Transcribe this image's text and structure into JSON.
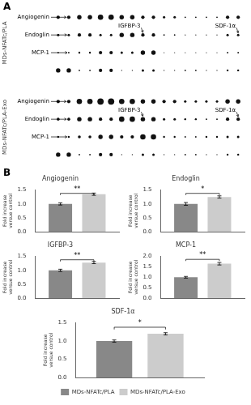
{
  "chart_data": [
    {
      "type": "bubble",
      "panel_label": "A",
      "ylabel": "MDs-NFATc/PLA",
      "color": "#111111",
      "cells": [
        [
          7,
          7,
          9,
          9,
          11,
          11,
          9,
          9,
          7,
          7,
          5,
          5,
          3,
          3,
          3,
          3,
          7,
          7
        ],
        [
          5,
          5,
          7,
          7,
          5,
          5,
          9,
          9,
          7,
          7,
          3,
          3,
          2,
          2,
          2,
          2,
          5,
          5
        ],
        [
          3,
          3,
          4,
          4,
          7,
          7,
          5,
          5,
          9,
          9,
          2,
          2,
          2,
          2,
          2,
          2,
          3,
          3
        ],
        [
          9,
          9,
          3,
          3,
          7,
          7,
          2,
          2,
          5,
          5,
          2,
          2,
          3,
          3,
          2,
          2,
          4,
          4
        ]
      ],
      "annotations": [
        "Angiogenin",
        "Endoglin",
        "MCP-1",
        "IGFBP-3",
        "SDF-1α"
      ],
      "tick_labels": false,
      "grid": false
    },
    {
      "type": "bubble",
      "ylabel": "MDs-NFATc/PLA-Exo",
      "color": "#111111",
      "cells": [
        [
          7,
          7,
          11,
          11,
          13,
          13,
          11,
          11,
          9,
          9,
          7,
          7,
          5,
          5,
          5,
          5,
          9,
          9
        ],
        [
          6,
          6,
          9,
          9,
          7,
          7,
          11,
          11,
          9,
          9,
          5,
          5,
          4,
          4,
          3,
          3,
          7,
          7
        ],
        [
          4,
          4,
          6,
          6,
          9,
          9,
          7,
          7,
          11,
          11,
          4,
          4,
          3,
          3,
          4,
          4,
          5,
          5
        ],
        [
          9,
          9,
          3,
          3,
          7,
          7,
          2,
          2,
          5,
          5,
          2,
          2,
          3,
          3,
          2,
          2,
          4,
          4
        ]
      ],
      "annotations": [
        "Angiogenin",
        "Endoglin",
        "MCP-1",
        "IGFBP-3",
        "SDF-1α"
      ],
      "tick_labels": false,
      "grid": false
    },
    {
      "type": "bar",
      "panel_label": "B",
      "title": "Angiogenin",
      "ylabel": "Fold increase\nversue control",
      "categories": [
        null
      ],
      "series": [
        {
          "name": "MDs-NFATc/PLA",
          "color": "#888888",
          "values": [
            1.0
          ],
          "errors": [
            0.04
          ]
        },
        {
          "name": "MDs-NFATc/PLA-Exo",
          "color": "#cccccc",
          "values": [
            1.35
          ],
          "errors": [
            0.04
          ]
        }
      ],
      "ylim": [
        0.0,
        1.5
      ],
      "yticks": [
        {
          "value": 0.0,
          "label": "0.0"
        },
        0.5,
        {
          "value": 1.0,
          "label": "1.0"
        },
        1.5
      ],
      "annotations": [
        {
          "text": "**",
          "y": 1.32,
          "y_top": 1.38
        }
      ],
      "tick_labels": "y",
      "grid": false
    },
    {
      "type": "bar",
      "title": "Endoglin",
      "ylabel": "Fold increase\nversue control",
      "categories": [
        null
      ],
      "series": [
        {
          "name": "MDs-NFATc/PLA",
          "color": "#888888",
          "values": [
            1.0
          ],
          "errors": [
            0.05
          ]
        },
        {
          "name": "MDs-NFATc/PLA-Exo",
          "color": "#cccccc",
          "values": [
            1.25
          ],
          "errors": [
            0.04
          ]
        }
      ],
      "ylim": [
        0.0,
        1.5
      ],
      "yticks": [
        {
          "value": 0.0,
          "label": "0.0"
        },
        0.5,
        {
          "value": 1.0,
          "label": "1.0"
        },
        1.5
      ],
      "annotations": [
        {
          "text": "*",
          "y": 1.32,
          "y_top": 1.38
        }
      ],
      "tick_labels": "y",
      "grid": false
    },
    {
      "type": "bar",
      "title": "IGFBP-3",
      "ylabel": "Fold increase\nversue control",
      "categories": [
        null
      ],
      "series": [
        {
          "name": "MDs-NFATc/PLA",
          "color": "#888888",
          "values": [
            1.0
          ],
          "errors": [
            0.04
          ]
        },
        {
          "name": "MDs-NFATc/PLA-Exo",
          "color": "#cccccc",
          "values": [
            1.28
          ],
          "errors": [
            0.04
          ]
        }
      ],
      "ylim": [
        0.0,
        1.5
      ],
      "yticks": [
        {
          "value": 0.0,
          "label": "0.0"
        },
        0.5,
        {
          "value": 1.0,
          "label": "1.0"
        },
        1.5
      ],
      "annotations": [
        {
          "text": "**",
          "y": 1.32,
          "y_top": 1.38
        }
      ],
      "tick_labels": "y",
      "grid": false
    },
    {
      "type": "bar",
      "title": "MCP-1",
      "ylabel": "Fold increase\nversue control",
      "categories": [
        null
      ],
      "series": [
        {
          "name": "MDs-NFATc/PLA",
          "color": "#888888",
          "values": [
            1.0
          ],
          "errors": [
            0.04
          ]
        },
        {
          "name": "MDs-NFATc/PLA-Exo",
          "color": "#cccccc",
          "values": [
            1.65
          ],
          "errors": [
            0.06
          ]
        }
      ],
      "ylim": [
        0.0,
        2.0
      ],
      "yticks": [
        {
          "value": 0.0,
          "label": "0.0"
        },
        0.5,
        {
          "value": 1.0,
          "label": "1.0"
        },
        1.5,
        {
          "value": 2.0,
          "label": "2.0"
        }
      ],
      "annotations": [
        {
          "text": "**",
          "y": 1.78,
          "y_top": 1.86
        }
      ],
      "tick_labels": "y",
      "grid": false
    },
    {
      "type": "bar",
      "title": "SDF-1α",
      "ylabel": "Fold increase\nversue control",
      "categories": [
        null
      ],
      "series": [
        {
          "name": "MDs-NFATc/PLA",
          "color": "#888888",
          "values": [
            1.0
          ],
          "errors": [
            0.03
          ]
        },
        {
          "name": "MDs-NFATc/PLA-Exo",
          "color": "#cccccc",
          "values": [
            1.2
          ],
          "errors": [
            0.03
          ]
        }
      ],
      "ylim": [
        0.0,
        1.5
      ],
      "yticks": [
        {
          "value": 0.0,
          "label": "0.0"
        },
        0.5,
        {
          "value": 1.0,
          "label": "1.0"
        },
        1.5
      ],
      "annotations": [
        {
          "text": "*",
          "y": 1.32,
          "y_top": 1.38
        }
      ],
      "tick_labels": "y",
      "grid": false,
      "legend": "bottom"
    }
  ]
}
